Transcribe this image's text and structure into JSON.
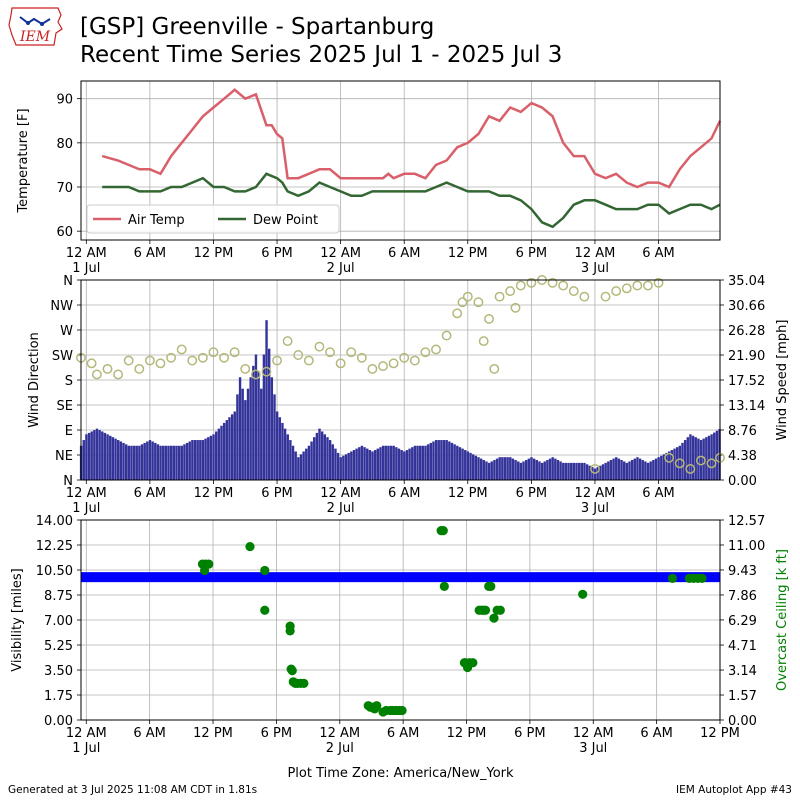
{
  "header": {
    "title_line1": "[GSP] Greenville - Spartanburg",
    "title_line2": "Recent Time Series 2025 Jul 1 - 2025 Jul 3",
    "logo_text": "IEM"
  },
  "footer": {
    "generated": "Generated at 3 Jul 2025 11:08 AM CDT in 1.81s",
    "app": "IEM Autoplot App #43"
  },
  "colors": {
    "air_temp": "#d9606a",
    "dew_point": "#336633",
    "wind_speed": "#33339a",
    "wind_dir": "#b5b87a",
    "visibility": "#0000ff",
    "ceiling": "#008000",
    "grid": "#b0b0b0"
  },
  "chart_data": [
    {
      "type": "line",
      "ylabel": "Temperature [F]",
      "ylim": [
        58,
        94
      ],
      "yticks": [
        60,
        70,
        80,
        90
      ],
      "x_axis_units": "hours since 2025-07-01 00:00",
      "xlim": [
        -0.5,
        59.8
      ],
      "x_tick_hours": [
        0,
        6,
        12,
        18,
        24,
        30,
        36,
        42,
        48,
        54
      ],
      "x_tick_labels": [
        "12 AM",
        "6 AM",
        "12 PM",
        "6 PM",
        "12 AM",
        "6 AM",
        "12 PM",
        "6 PM",
        "12 AM",
        "6 AM"
      ],
      "date_labels": [
        {
          "hour": 0,
          "label": "1 Jul"
        },
        {
          "hour": 24,
          "label": "2 Jul"
        },
        {
          "hour": 48,
          "label": "3 Jul"
        }
      ],
      "grid": true,
      "legend": {
        "position": "lower-left",
        "entries": [
          "Air Temp",
          "Dew Point"
        ]
      },
      "series": [
        {
          "name": "Air Temp",
          "x": [
            1.5,
            3,
            5,
            6,
            7,
            8,
            9,
            10,
            11,
            12,
            13,
            14,
            15,
            16,
            17,
            17.5,
            18,
            18.5,
            19,
            20,
            21,
            22,
            23,
            24,
            25,
            26,
            27,
            28,
            28.5,
            29,
            30,
            31,
            32,
            33,
            34,
            35,
            36,
            37,
            38,
            39,
            40,
            41,
            42,
            43,
            44,
            45,
            46,
            47,
            48,
            49,
            50,
            51,
            52,
            53,
            54,
            55,
            56,
            57,
            58,
            59,
            59.8
          ],
          "values": [
            77,
            76,
            74,
            74,
            73,
            77,
            80,
            83,
            86,
            88,
            90,
            92,
            90,
            91,
            84,
            84,
            82,
            81,
            72,
            72,
            73,
            74,
            74,
            72,
            72,
            72,
            72,
            72,
            73,
            72,
            73,
            73,
            72,
            75,
            76,
            79,
            80,
            82,
            86,
            85,
            88,
            87,
            89,
            88,
            86,
            80,
            77,
            77,
            73,
            72,
            73,
            71,
            70,
            71,
            71,
            70,
            74,
            77,
            79,
            81,
            85
          ]
        },
        {
          "name": "Dew Point",
          "x": [
            1.5,
            3,
            4,
            5,
            6,
            7,
            8,
            9,
            10,
            11,
            12,
            13,
            14,
            15,
            16,
            17,
            18,
            18.5,
            19,
            20,
            21,
            22,
            23,
            24,
            25,
            26,
            27,
            28,
            29,
            30,
            31,
            32,
            33,
            34,
            35,
            36,
            37,
            38,
            39,
            40,
            41,
            42,
            43,
            44,
            45,
            46,
            47,
            48,
            49,
            50,
            51,
            52,
            53,
            54,
            55,
            56,
            57,
            58,
            59,
            59.8
          ],
          "values": [
            70,
            70,
            70,
            69,
            69,
            69,
            70,
            70,
            71,
            72,
            70,
            70,
            69,
            69,
            70,
            73,
            72,
            71,
            69,
            68,
            69,
            71,
            70,
            69,
            68,
            68,
            69,
            69,
            69,
            69,
            69,
            69,
            70,
            71,
            70,
            69,
            69,
            69,
            68,
            68,
            67,
            65,
            62,
            61,
            63,
            66,
            67,
            67,
            66,
            65,
            65,
            65,
            66,
            66,
            64,
            65,
            66,
            66,
            65,
            66
          ]
        }
      ]
    },
    {
      "type": "bar",
      "ylabel": "Wind Direction",
      "y2label": "Wind Speed [mph]",
      "direction_ticks": [
        "N",
        "NE",
        "E",
        "SE",
        "S",
        "SW",
        "W",
        "NW",
        "N"
      ],
      "direction_ylim_deg": [
        0,
        360
      ],
      "speed_ticks": [
        "0.00",
        "4.38",
        "8.76",
        "13.14",
        "17.52",
        "21.90",
        "26.28",
        "30.66",
        "35.04"
      ],
      "speed_ylim_mph": [
        0,
        35.04
      ],
      "x_axis_units": "hours since 2025-07-01 00:00",
      "xlim": [
        -0.5,
        59.8
      ],
      "x_tick_hours": [
        0,
        6,
        12,
        18,
        24,
        30,
        36,
        42,
        48,
        54
      ],
      "x_tick_labels": [
        "12 AM",
        "6 AM",
        "12 PM",
        "6 PM",
        "12 AM",
        "6 AM",
        "12 PM",
        "6 PM",
        "12 AM",
        "6 AM"
      ],
      "date_labels": [
        {
          "hour": 0,
          "label": "1 Jul"
        },
        {
          "hour": 24,
          "label": "2 Jul"
        },
        {
          "hour": 48,
          "label": "3 Jul"
        }
      ],
      "grid": true,
      "wind_speed_mph": {
        "x": [
          -0.5,
          0,
          1,
          2,
          3,
          4,
          5,
          6,
          7,
          8,
          9,
          10,
          11,
          12,
          13,
          14,
          14.5,
          15,
          16,
          16.5,
          17,
          17.5,
          18,
          19,
          20,
          21,
          22,
          23,
          24,
          25,
          26,
          27,
          28,
          29,
          30,
          31,
          32,
          33,
          34,
          35,
          36,
          37,
          38,
          39,
          40,
          41,
          42,
          43,
          44,
          45,
          46,
          47,
          48,
          49,
          50,
          51,
          52,
          53,
          54,
          55,
          56,
          57,
          58,
          59,
          59.8
        ],
        "values": [
          6,
          8,
          9,
          8,
          7,
          6,
          6,
          7,
          6,
          6,
          6,
          7,
          7,
          8,
          10,
          12,
          18,
          14,
          22,
          16,
          28,
          18,
          12,
          8,
          4,
          6,
          9,
          7,
          4,
          5,
          6,
          5,
          6,
          6,
          5,
          6,
          6,
          7,
          7,
          6,
          5,
          4,
          3,
          4,
          4,
          3,
          4,
          3,
          4,
          3,
          3,
          3,
          2,
          3,
          4,
          3,
          4,
          3,
          4,
          5,
          6,
          8,
          7,
          8,
          9
        ]
      },
      "wind_dir_deg": {
        "x": [
          -0.5,
          0.5,
          1,
          2,
          3,
          4,
          5,
          6,
          7,
          8,
          9,
          10,
          11,
          12,
          13,
          14,
          15,
          16,
          17,
          18,
          19,
          20,
          21,
          22,
          23,
          24,
          25,
          26,
          27,
          28,
          29,
          30,
          31,
          32,
          33,
          34,
          35,
          35.5,
          36,
          37,
          37.5,
          38,
          38.5,
          39,
          40,
          40.5,
          41,
          42,
          43,
          44,
          45,
          46,
          47,
          48,
          49,
          50,
          51,
          52,
          53,
          54,
          55,
          56,
          57,
          58,
          59,
          59.8
        ],
        "values": [
          220,
          210,
          190,
          200,
          190,
          215,
          200,
          215,
          210,
          220,
          235,
          215,
          220,
          230,
          220,
          230,
          200,
          190,
          195,
          215,
          250,
          225,
          215,
          240,
          230,
          210,
          230,
          220,
          200,
          205,
          210,
          220,
          215,
          230,
          235,
          260,
          300,
          320,
          330,
          320,
          250,
          290,
          200,
          330,
          340,
          310,
          350,
          355,
          360,
          355,
          350,
          340,
          330,
          20,
          330,
          340,
          345,
          350,
          350,
          355,
          40,
          30,
          20,
          35,
          30,
          40
        ]
      }
    },
    {
      "type": "scatter",
      "ylabel": "Visibility [miles]",
      "y2label": "Overcast Ceiling [k ft]",
      "ylim": [
        0,
        14
      ],
      "yticks": [
        "0.00",
        "1.75",
        "3.50",
        "5.25",
        "7.00",
        "8.75",
        "10.50",
        "12.25",
        "14.00"
      ],
      "y2lim": [
        0,
        12.57
      ],
      "y2ticks": [
        "0.00",
        "1.57",
        "3.14",
        "4.71",
        "6.29",
        "7.86",
        "9.43",
        "11.00",
        "12.57"
      ],
      "x_axis_units": "hours since 2025-07-01 00:00",
      "xlim": [
        -0.5,
        60
      ],
      "x_tick_hours": [
        0,
        6,
        12,
        18,
        24,
        30,
        36,
        42,
        48,
        54,
        60
      ],
      "x_tick_labels": [
        "12 AM",
        "6 AM",
        "12 PM",
        "6 PM",
        "12 AM",
        "6 AM",
        "12 PM",
        "6 PM",
        "12 AM",
        "6 AM",
        "12 PM"
      ],
      "date_labels": [
        {
          "hour": 0,
          "label": "1 Jul"
        },
        {
          "hour": 24,
          "label": "2 Jul"
        },
        {
          "hour": 48,
          "label": "3 Jul"
        }
      ],
      "xlabel": "Plot Time Zone: America/New_York",
      "grid": true,
      "visibility": {
        "x_start": -0.5,
        "x_end": 60,
        "value": 10.0
      },
      "ceiling_kft": {
        "x": [
          11,
          11.3,
          11.6,
          11.2,
          15.5,
          16.9,
          16.9,
          19.3,
          19.3,
          19.4,
          19.5,
          19.6,
          19.8,
          20,
          20.3,
          20.6,
          26.7,
          26.9,
          27.1,
          27.3,
          27.5,
          28.1,
          28.4,
          28.8,
          29,
          29.3,
          29.6,
          29.9,
          33.6,
          33.8,
          33.9,
          35.8,
          35.9,
          36.1,
          36.3,
          36.6,
          37.2,
          37.4,
          37.6,
          37.8,
          38.1,
          38.3,
          38.6,
          38.9,
          39.2,
          47,
          55.5,
          57.1,
          57.5,
          57.9,
          58.3
        ],
        "values": [
          9.8,
          9.8,
          9.8,
          9.4,
          10.9,
          9.4,
          6.9,
          5.9,
          5.6,
          3.2,
          3.1,
          2.4,
          2.3,
          2.3,
          2.3,
          2.3,
          0.9,
          0.8,
          0.8,
          0.7,
          0.9,
          0.5,
          0.6,
          0.6,
          0.6,
          0.6,
          0.6,
          0.6,
          11.9,
          11.9,
          8.4,
          3.6,
          3.6,
          3.3,
          3.6,
          3.6,
          6.9,
          6.9,
          6.9,
          6.9,
          8.4,
          8.4,
          6.4,
          6.9,
          6.9,
          7.9,
          8.9,
          8.9,
          8.9,
          8.9,
          8.9
        ]
      }
    }
  ]
}
